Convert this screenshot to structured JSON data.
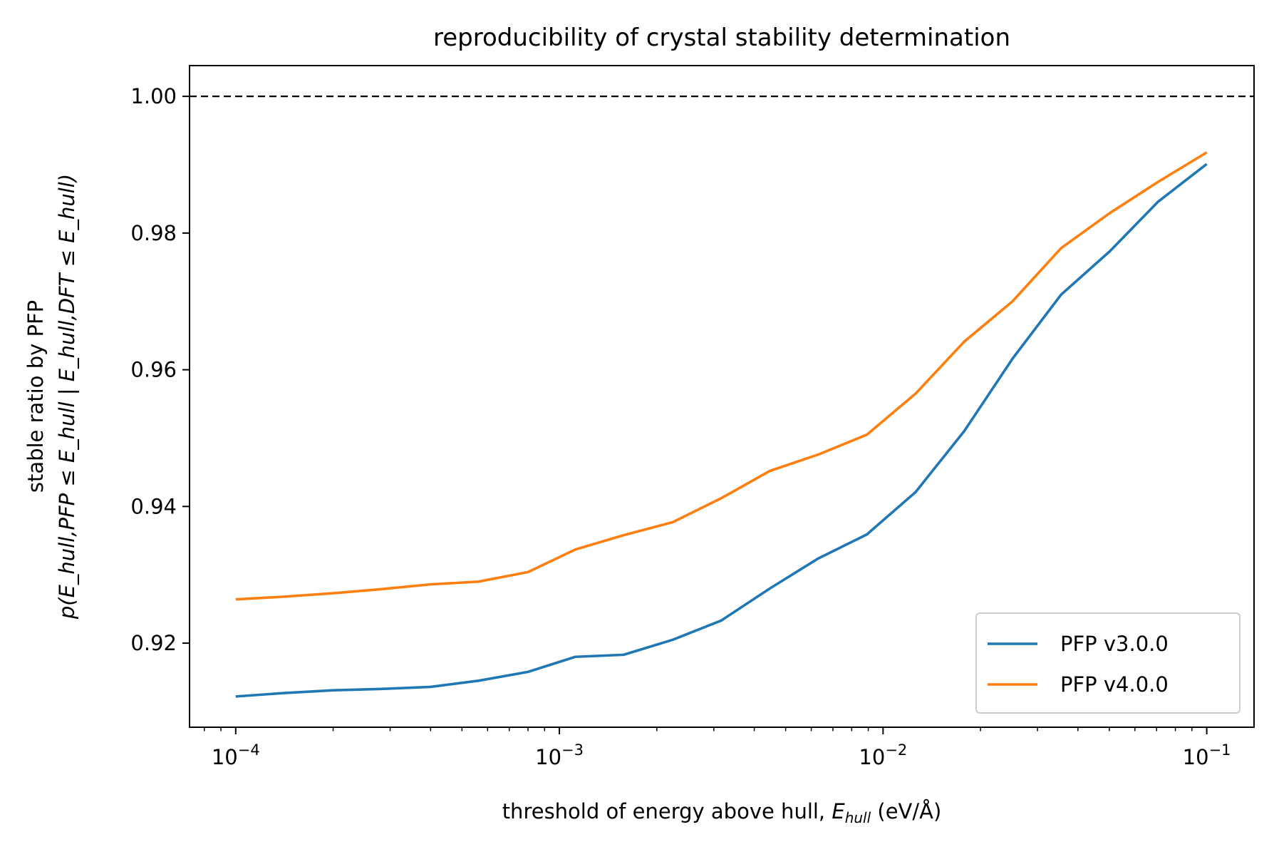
{
  "chart_data": {
    "type": "line",
    "title": "reproducibility of crystal stability determination",
    "xlabel": {
      "prefix": "threshold of energy above hull, ",
      "var": "E",
      "sub": "hull",
      "suffix": " (eV/Å)"
    },
    "ylabel": {
      "line1": "stable ratio by PFP",
      "line2": "p(E_hull,PFP ≤ E_hull | E_hull,DFT ≤ E_hull)"
    },
    "xscale": "log",
    "xlim": [
      7.2e-05,
      0.14
    ],
    "ylim": [
      0.9077,
      1.0045
    ],
    "xticks": [
      {
        "value": 0.0001,
        "base": "10",
        "exp": "−4"
      },
      {
        "value": 0.001,
        "base": "10",
        "exp": "−3"
      },
      {
        "value": 0.01,
        "base": "10",
        "exp": "−2"
      },
      {
        "value": 0.1,
        "base": "10",
        "exp": "−1"
      }
    ],
    "yticks": [
      {
        "value": 0.92,
        "label": "0.92"
      },
      {
        "value": 0.94,
        "label": "0.94"
      },
      {
        "value": 0.96,
        "label": "0.96"
      },
      {
        "value": 0.98,
        "label": "0.98"
      },
      {
        "value": 1.0,
        "label": "1.00"
      }
    ],
    "reference_line": {
      "y": 1.0,
      "style": "dashed",
      "color": "#000000"
    },
    "x": [
      0.0001,
      0.000141,
      0.0002,
      0.000282,
      0.0004,
      0.000562,
      0.0008,
      0.00112,
      0.00158,
      0.00224,
      0.00316,
      0.00447,
      0.00631,
      0.00891,
      0.0126,
      0.0178,
      0.0251,
      0.0355,
      0.0501,
      0.0708,
      0.1
    ],
    "series": [
      {
        "name": "PFP v3.0.0",
        "color": "#1f77b4",
        "values": [
          0.9122,
          0.9127,
          0.9131,
          0.9133,
          0.9136,
          0.9145,
          0.9158,
          0.918,
          0.9183,
          0.9205,
          0.9233,
          0.928,
          0.9324,
          0.9359,
          0.9421,
          0.951,
          0.9616,
          0.971,
          0.9773,
          0.9846,
          0.9901
        ]
      },
      {
        "name": "PFP v4.0.0",
        "color": "#ff7f0e",
        "values": [
          0.9264,
          0.9268,
          0.9273,
          0.9279,
          0.9286,
          0.929,
          0.9304,
          0.9337,
          0.9358,
          0.9377,
          0.9412,
          0.9452,
          0.9476,
          0.9505,
          0.9565,
          0.9641,
          0.97,
          0.9778,
          0.9829,
          0.9875,
          0.9918
        ]
      }
    ],
    "legend": {
      "position": "lower-right"
    }
  }
}
